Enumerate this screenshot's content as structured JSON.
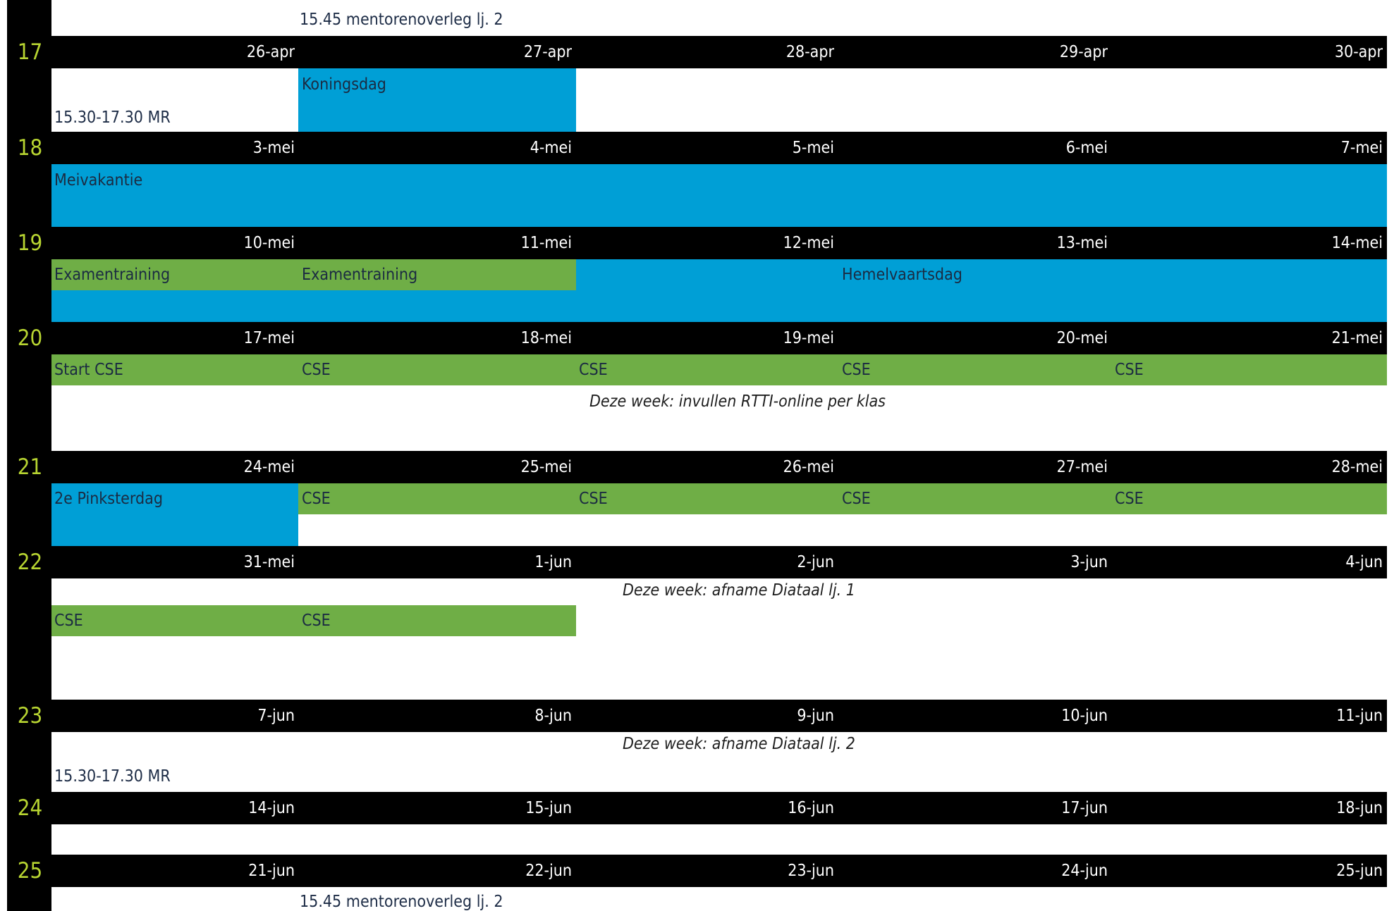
{
  "title": "",
  "top_note": "15.45 mentorenoverleg lj. 2",
  "weeks": [
    {
      "week": "17",
      "dates": [
        "26-apr",
        "27-apr",
        "28-apr",
        "29-apr",
        "30-apr"
      ],
      "events": {
        "koningsdag": "Koningsdag",
        "mr": "15.30-17.30 MR"
      }
    },
    {
      "week": "18",
      "dates": [
        "3-mei",
        "4-mei",
        "5-mei",
        "6-mei",
        "7-mei"
      ],
      "events": {
        "meivakantie": "Meivakantie"
      }
    },
    {
      "week": "19",
      "dates": [
        "10-mei",
        "11-mei",
        "12-mei",
        "13-mei",
        "14-mei"
      ],
      "events": {
        "exam1": "Examentraining",
        "exam2": "Examentraining",
        "hemelvaart": "Hemelvaartsdag"
      }
    },
    {
      "week": "20",
      "dates": [
        "17-mei",
        "18-mei",
        "19-mei",
        "20-mei",
        "21-mei"
      ],
      "events": {
        "start_cse": "Start CSE",
        "cse": [
          "CSE",
          "CSE",
          "CSE",
          "CSE"
        ],
        "note": "Deze week: invullen RTTI-online per klas"
      }
    },
    {
      "week": "21",
      "dates": [
        "24-mei",
        "25-mei",
        "26-mei",
        "27-mei",
        "28-mei"
      ],
      "events": {
        "pinksteren": "2e Pinksterdag",
        "cse": [
          "CSE",
          "CSE",
          "CSE",
          "CSE"
        ]
      }
    },
    {
      "week": "22",
      "dates": [
        "31-mei",
        "1-jun",
        "2-jun",
        "3-jun",
        "4-jun"
      ],
      "events": {
        "note": "Deze week: afname Diataal lj. 1",
        "cse": [
          "CSE",
          "CSE"
        ]
      }
    },
    {
      "week": "23",
      "dates": [
        "7-jun",
        "8-jun",
        "9-jun",
        "10-jun",
        "11-jun"
      ],
      "events": {
        "note": "Deze week: afname Diataal lj. 2",
        "mr": "15.30-17.30 MR"
      }
    },
    {
      "week": "24",
      "dates": [
        "14-jun",
        "15-jun",
        "16-jun",
        "17-jun",
        "18-jun"
      ]
    },
    {
      "week": "25",
      "dates": [
        "21-jun",
        "22-jun",
        "23-jun",
        "24-jun",
        "25-jun"
      ],
      "events": {
        "mentor": "15.45 mentorenoverleg lj. 2"
      }
    }
  ],
  "colors": {
    "header": "#000000",
    "week_number": "#b7d431",
    "vacation": "#009fd6",
    "exam": "#6fae46"
  }
}
